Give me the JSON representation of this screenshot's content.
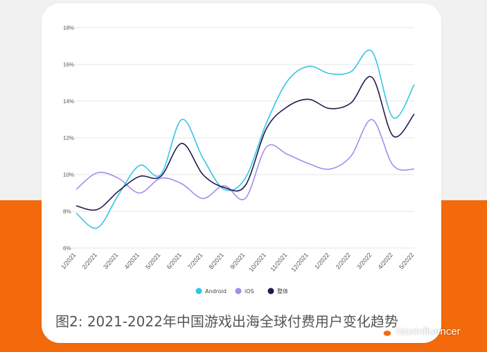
{
  "caption": "图2: 2021-2022年中国游戏出海全球付费用户变化趋势",
  "watermark": "NoxInfluencer",
  "chart_data": {
    "type": "line",
    "categories": [
      "1/2021",
      "2/2021",
      "3/2021",
      "4/2021",
      "5/2021",
      "6/2021",
      "7/2021",
      "8/2021",
      "9/2021",
      "10/2021",
      "11/2021",
      "12/2021",
      "1/2022",
      "2/2022",
      "3/2022",
      "4/2022",
      "5/2022"
    ],
    "y_ticks": [
      "6%",
      "8%",
      "10%",
      "12%",
      "14%",
      "16%",
      "18%"
    ],
    "ylim": [
      6,
      18
    ],
    "grid": true,
    "legend_position": "bottom",
    "series": [
      {
        "name": "Android",
        "color": "#35c4e8",
        "values": [
          7.9,
          7.1,
          8.9,
          10.5,
          10.0,
          13.0,
          10.9,
          9.2,
          9.8,
          12.8,
          15.1,
          15.9,
          15.5,
          15.6,
          16.7,
          13.1,
          14.9
        ]
      },
      {
        "name": "iOS",
        "color": "#a58bec",
        "values": [
          9.2,
          10.1,
          9.8,
          9.0,
          9.8,
          9.5,
          8.7,
          9.4,
          8.7,
          11.5,
          11.1,
          10.6,
          10.3,
          11.0,
          13.0,
          10.5,
          10.3
        ]
      },
      {
        "name": "整体",
        "color": "#1f1a4d",
        "values": [
          8.3,
          8.1,
          9.1,
          9.9,
          9.9,
          11.7,
          10.0,
          9.3,
          9.4,
          12.5,
          13.7,
          14.1,
          13.6,
          13.9,
          15.3,
          12.1,
          13.3
        ]
      }
    ]
  }
}
